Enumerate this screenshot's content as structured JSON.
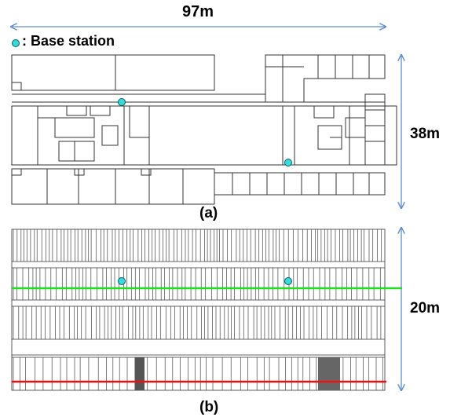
{
  "top_dimension": "97m",
  "legend_label": ": Base station",
  "right_dimension_a": "38m",
  "caption_a": "(a)",
  "right_dimension_b": "20m",
  "caption_b": "(b)",
  "colors": {
    "arrow": "#5a8fd0",
    "wall": "#333333",
    "base_station_fill": "#33dddd",
    "base_station_stroke": "#0a6060",
    "green_line": "#22dd22",
    "red_line": "#ee1111"
  },
  "icons": {
    "base_station": "cyan-circle-icon"
  }
}
